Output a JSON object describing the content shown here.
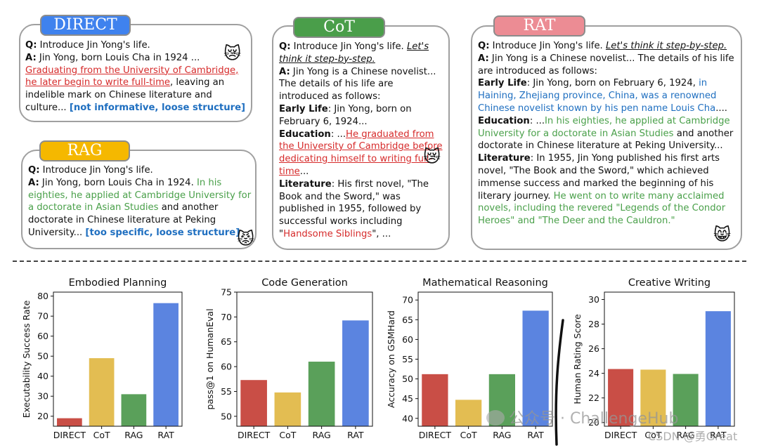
{
  "panels": {
    "direct": {
      "label": "DIRECT",
      "q_label": "Q:",
      "q": " Introduce Jin Yong's life.",
      "a_label": "A:",
      "a1": " Jin Yong, born Louis Cha in 1924 ...",
      "a_red": "Graduating from the University of Cambridge, he later begin to write full-time",
      "a2": ", leaving an indelible mark on Chinese literature and culture... ",
      "note": "[not informative, loose structure]"
    },
    "rag": {
      "label": "RAG",
      "q_label": "Q:",
      "q": " Introduce Jin Yong's life.",
      "a_label": "A:",
      "a1": " Jin Yong, born Louis Cha in 1924. ",
      "a_green": "In his eighties, he applied at Cambridge University for a doctorate in Asian Studies",
      "a2": " and another doctorate in Chinese literature at Peking University... ",
      "note": "[too specific, loose structure]"
    },
    "cot": {
      "label": "CoT",
      "q_label": "Q:",
      "q": " Introduce Jin Yong's life. ",
      "q_step": "Let's think it step-by-step.",
      "a_label": "A:",
      "a1": " Jin Yong is a Chinese novelist... The details of his life are introduced as follows:",
      "early_label": "Early Life",
      "early": ": Jin Yong, born on February 6, 1924...",
      "edu_label": "Education",
      "edu1": ": ...",
      "edu_red": "He graduated from the University of Cambridge before dedicating himself to writing full-time",
      "edu2": "...",
      "lit_label": "Literature",
      "lit1": ": His first novel, \"The Book and the Sword,\" was published in 1955, followed by successful works including \"",
      "lit_red": "Handsome Siblings",
      "lit2": "\", ..."
    },
    "rat": {
      "label": "RAT",
      "q_label": "Q:",
      "q": " Introduce Jin Yong's life. ",
      "q_step": "Let's think it step-by-step.",
      "a_label": "A:",
      "a1": " Jin Yong is a Chinese novelist... The details of his life are introduced as follows:",
      "early_label": "Early Life",
      "early1": ": Jin Yong, born on February 6, 1924, ",
      "early_blue": "in Haining, Zhejiang province, China, was a renowned Chinese novelist known by his pen name Louis Cha",
      "early2": "....",
      "edu_label": "Education",
      "edu1": ": ...",
      "edu_green": "In his eighties, he applied at Cambridge University for a doctorate in Asian Studies",
      "edu2": " and another doctorate in Chinese literature at Peking University...",
      "lit_label": "Literature",
      "lit1": ": In 1955, Jin Yong published his first arts novel, \"The Book and the Sword,\" which achieved immense success and marked the beginning of his literary journey. ",
      "lit_green": "He went on to write many acclaimed novels, including the revered \"Legends of the Condor Heroes\" and \"The Deer and the Cauldron.\""
    }
  },
  "emojis": {
    "direct": "😿",
    "cot": "😿",
    "rag": "😾",
    "rat": "😸"
  },
  "watermark": {
    "main": "公众号 · ChallengeHub",
    "sub": "CSDN @勇Great"
  },
  "chart_data": [
    {
      "type": "bar",
      "title": "Embodied Planning",
      "ylabel": "Executability Success Rate",
      "categories": [
        "DIRECT",
        "CoT",
        "RAG",
        "RAT"
      ],
      "values": [
        19,
        49,
        31,
        76.5
      ],
      "ylim": [
        15,
        82
      ],
      "yticks": [
        20,
        30,
        40,
        50,
        60,
        70,
        80
      ],
      "colors": [
        "#c94e46",
        "#e3bd52",
        "#5aa05a",
        "#5b84e0"
      ]
    },
    {
      "type": "bar",
      "title": "Code Generation",
      "ylabel": "pass@1 on HumanEval",
      "categories": [
        "DIRECT",
        "CoT",
        "RAG",
        "RAT"
      ],
      "values": [
        57.3,
        54.8,
        61,
        69.3
      ],
      "ylim": [
        48,
        75
      ],
      "yticks": [
        50,
        55,
        60,
        65,
        70,
        75
      ],
      "colors": [
        "#c94e46",
        "#e3bd52",
        "#5aa05a",
        "#5b84e0"
      ]
    },
    {
      "type": "bar",
      "title": "Mathematical Reasoning",
      "ylabel": "Accuracy on GSMHard",
      "categories": [
        "DIRECT",
        "CoT",
        "RAG",
        "RAT"
      ],
      "values": [
        51.2,
        44.7,
        51.2,
        67.3
      ],
      "ylim": [
        38,
        72
      ],
      "yticks": [
        40,
        45,
        50,
        55,
        60,
        65,
        70
      ],
      "colors": [
        "#c94e46",
        "#e3bd52",
        "#5aa05a",
        "#5b84e0"
      ]
    },
    {
      "type": "bar",
      "title": "Creative Writing",
      "ylabel": "Human Rating Score",
      "categories": [
        "DIRECT",
        "CoT",
        "RAG",
        "RAT"
      ],
      "values": [
        24.35,
        24.3,
        23.95,
        29.05
      ],
      "ylim": [
        19.7,
        30.6
      ],
      "yticks": [
        20,
        22,
        24,
        26,
        28,
        30
      ],
      "colors": [
        "#c94e46",
        "#e3bd52",
        "#5aa05a",
        "#5b84e0"
      ]
    }
  ]
}
